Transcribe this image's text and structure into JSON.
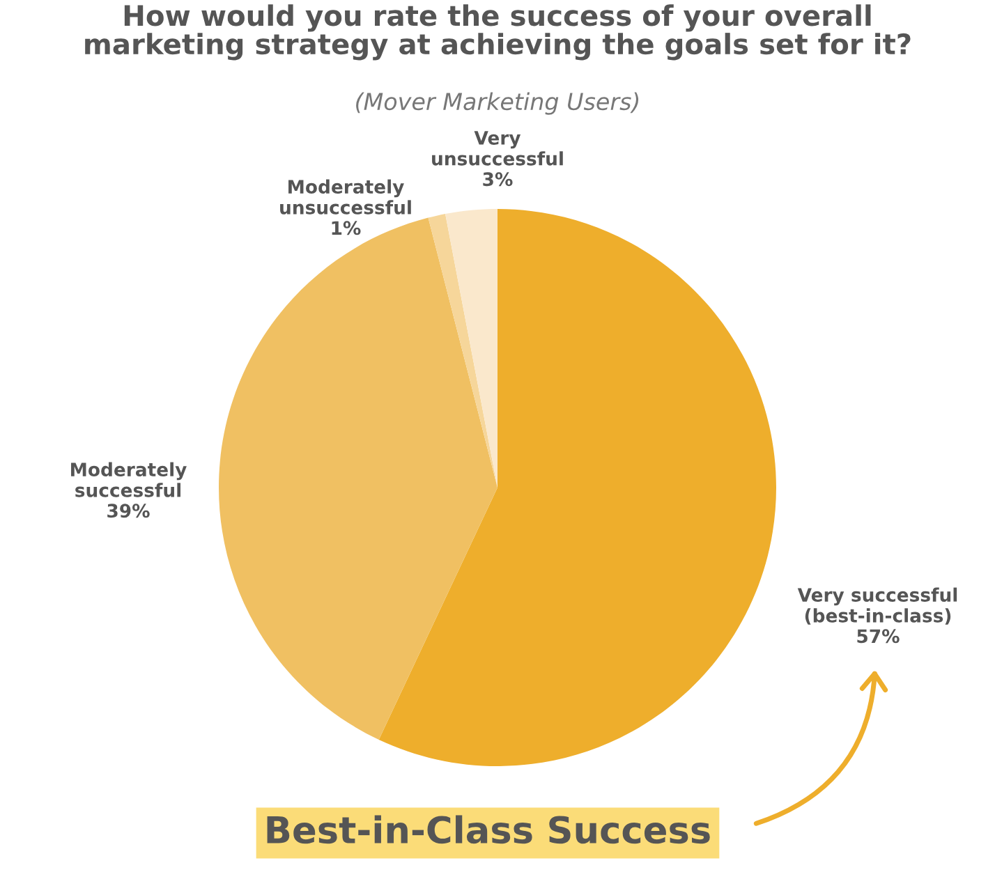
{
  "chart_data": {
    "type": "pie",
    "title": "How would you rate the success of your overall\nmarketing strategy at achieving the goals set for it?",
    "subtitle": "(Mover Marketing Users)",
    "categories": [
      "Very successful\n(best-in-class)",
      "Moderately\nsuccessful",
      "Moderately\nunsuccessful",
      "Very\nunsuccessful"
    ],
    "values": [
      57,
      39,
      1,
      3
    ],
    "colors": [
      "#eeae2c",
      "#f0c062",
      "#f6d69a",
      "#fae8cc"
    ],
    "value_labels": [
      "57%",
      "39%",
      "1%",
      "3%"
    ],
    "annotations": [
      "Best-in-Class Success"
    ],
    "legend": false
  }
}
